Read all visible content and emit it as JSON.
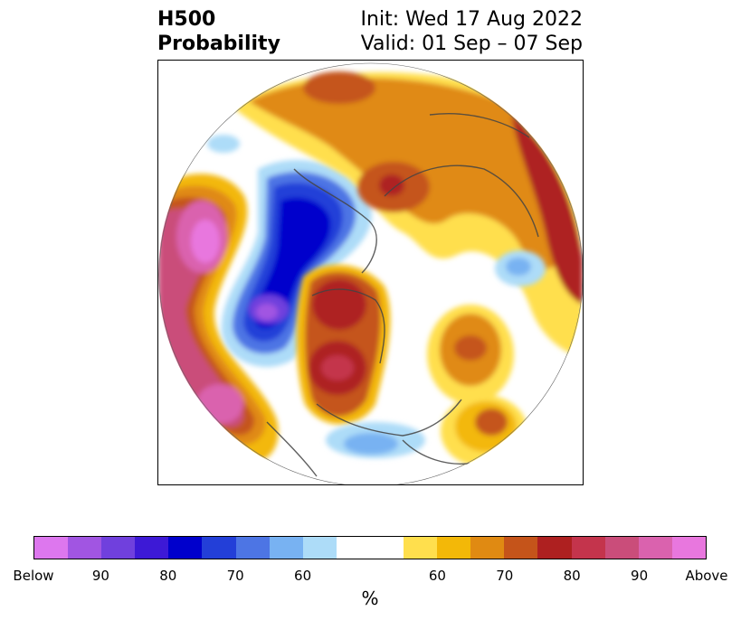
{
  "title": {
    "left_line1": "H500",
    "left_line2": "Probability",
    "right_line1": "Init: Wed 17 Aug 2022",
    "right_line2": "Valid: 01 Sep – 07 Sep"
  },
  "colorbar": {
    "units": "%",
    "colors": [
      "#dd77ee",
      "#a155e2",
      "#7040dd",
      "#3d19d6",
      "#0000cc",
      "#233fd8",
      "#4d75e4",
      "#78b2f2",
      "#addcf8",
      "#ffffff",
      "#ffdf4d",
      "#f3b808",
      "#e08a12",
      "#c5541a",
      "#ae2020",
      "#c4344c",
      "#ca4d7a",
      "#da62ae",
      "#e877de"
    ],
    "ticks": [
      "Below",
      "90",
      "80",
      "70",
      "60",
      "60",
      "70",
      "80",
      "90",
      "Above"
    ]
  }
}
